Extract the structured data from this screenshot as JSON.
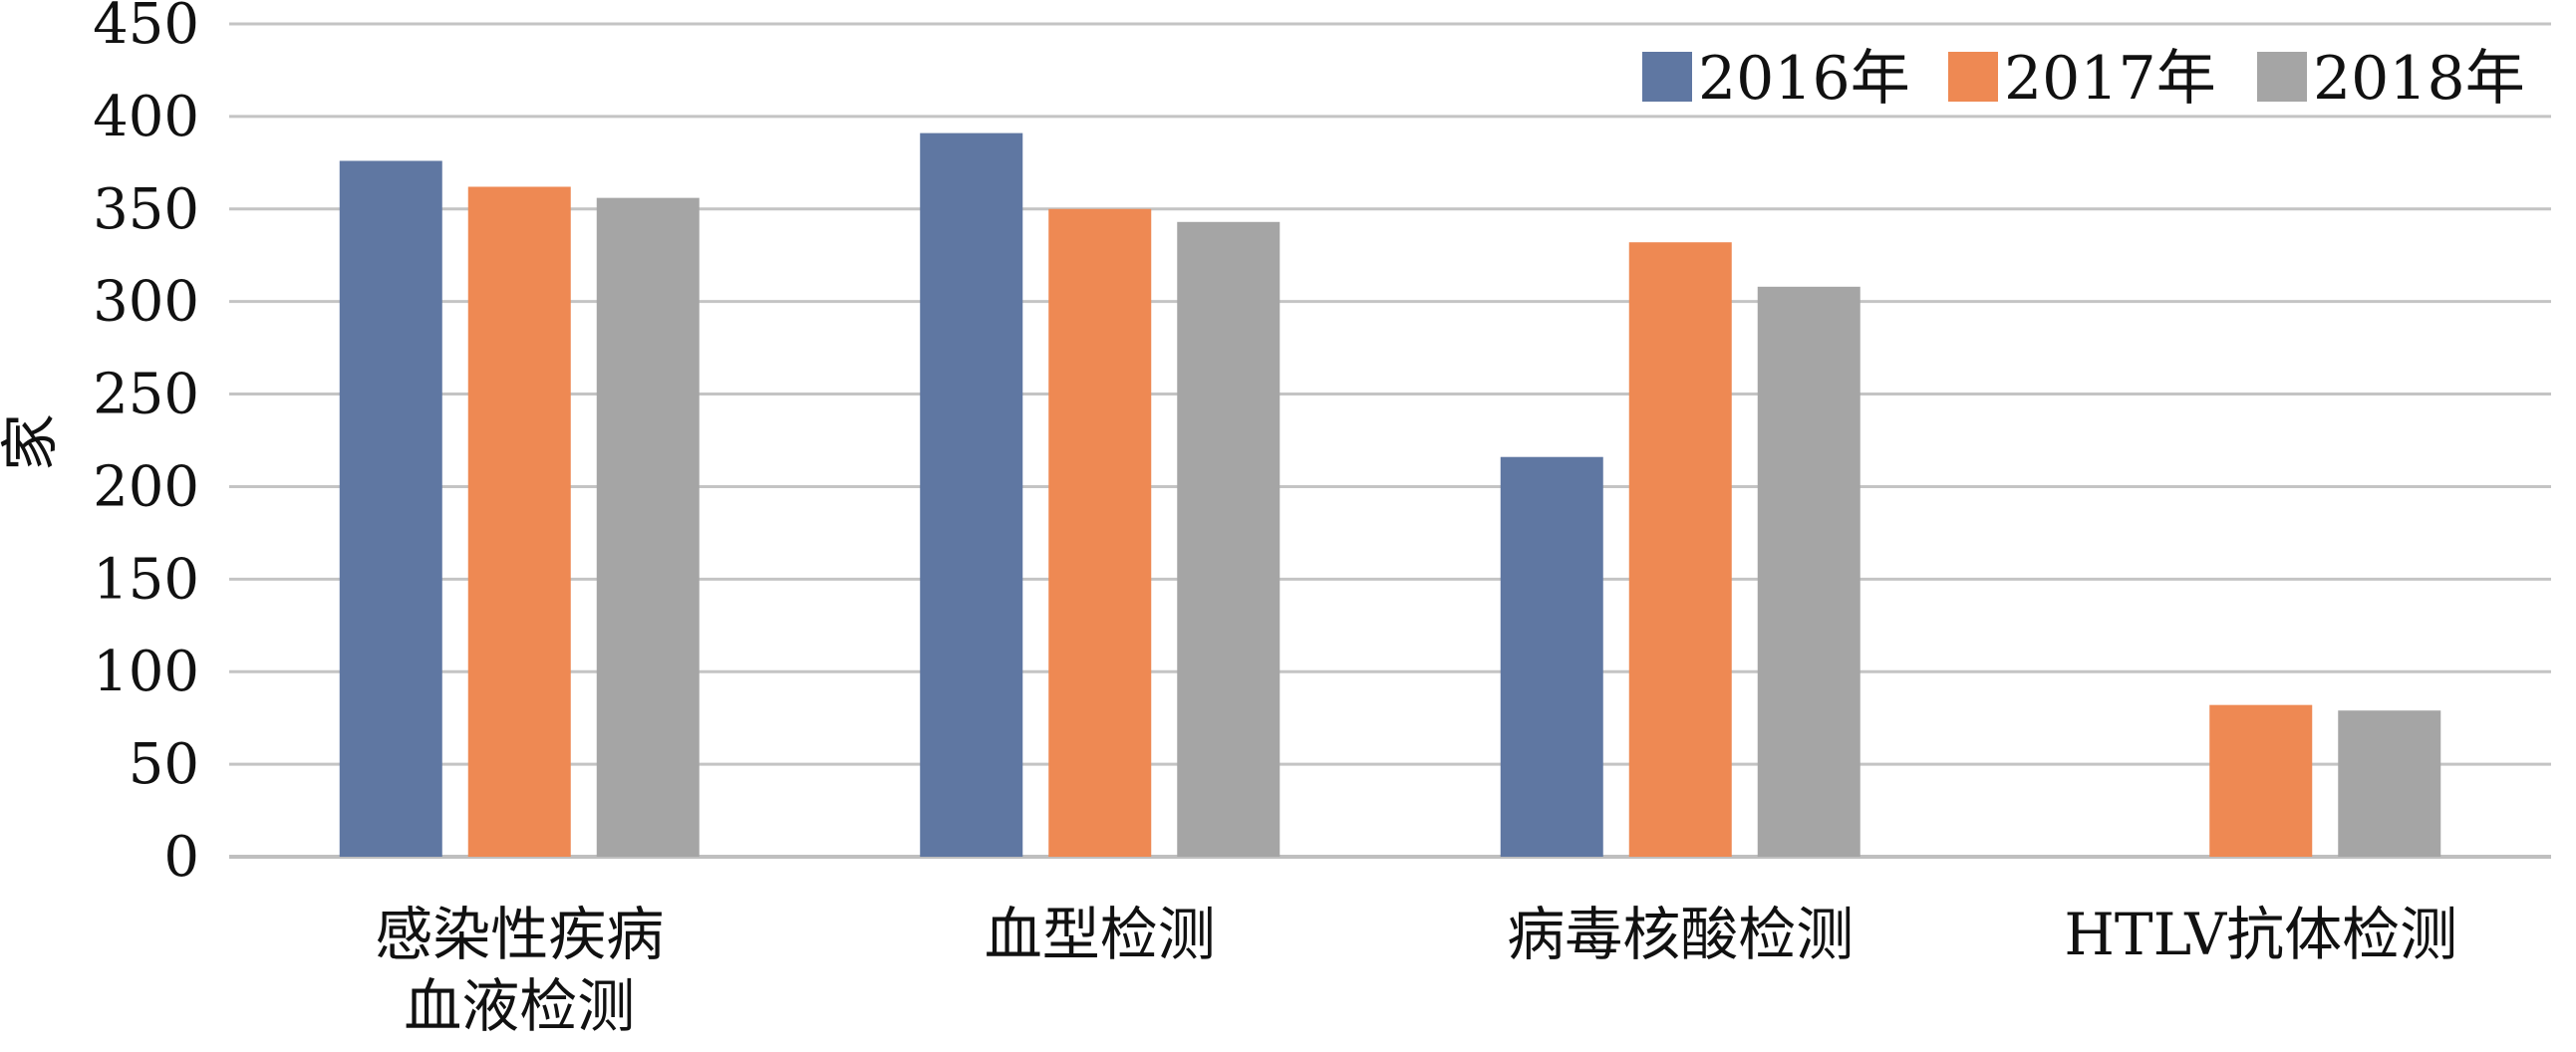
{
  "chart_data": {
    "type": "bar",
    "title": "",
    "xlabel": "",
    "ylabel": "家",
    "ylim": [
      0,
      450
    ],
    "yticks": [
      0,
      50,
      100,
      150,
      200,
      250,
      300,
      350,
      400,
      450
    ],
    "grid": true,
    "legend_position": "top-right",
    "categories": [
      [
        "感染性疾病",
        "血液检测"
      ],
      [
        "血型检测"
      ],
      [
        "病毒核酸检测"
      ],
      [
        "HTLV抗体检测"
      ]
    ],
    "series": [
      {
        "name": "2016年",
        "color": "#5f77a2",
        "values": [
          376,
          391,
          216,
          null
        ]
      },
      {
        "name": "2017年",
        "color": "#ee8953",
        "values": [
          362,
          350,
          332,
          82
        ]
      },
      {
        "name": "2018年",
        "color": "#a5a5a5",
        "values": [
          356,
          343,
          308,
          79
        ]
      }
    ]
  }
}
